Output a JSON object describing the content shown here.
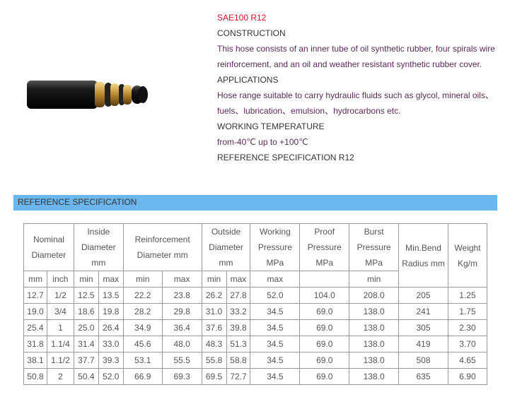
{
  "product": {
    "title": "SAE100 R12",
    "construction_heading": "CONSTRUCTION",
    "construction_text": "This hose consists of an inner tube of oil synthetic rubber, four spirals wire reinforcement, and an oil and weather resistant synthetic rubber cover.",
    "applications_heading": "APPLICATIONS",
    "applications_text": "Hose range suitable to carry hydraulic fluids such as glycol, mineral oils、fuels、lubrication、emulsion、hydrocarbons etc.",
    "temperature_heading": "WORKING TEMPERATURE",
    "temperature_text": "from-40℃ up to +100℃",
    "reference_heading": "REFERENCE SPECIFICATION R12"
  },
  "section_band": "REFERENCE SPECIFICATION",
  "table": {
    "headers": {
      "nominal": "Nominal Diameter",
      "inside": "Inside Diameter mm",
      "reinf": "Reinforcement Diameter mm",
      "outside": "Outside Diameter mm",
      "working": "Working Pressure MPa",
      "proof": "Proof Pressure MPa",
      "burst": "Burst Pressure MPa",
      "bend": "Min.Bend Radius mm",
      "weight": "Weight Kg/m"
    },
    "sub": {
      "mm": "mm",
      "inch": "inch",
      "min": "min",
      "max": "max"
    },
    "rows": [
      [
        "12.7",
        "1/2",
        "12.5",
        "13.5",
        "22.2",
        "23.8",
        "26.2",
        "27.8",
        "52.0",
        "104.0",
        "208.0",
        "205",
        "1.25"
      ],
      [
        "19.0",
        "3/4",
        "18.6",
        "19.8",
        "28.2",
        "29.8",
        "31.0",
        "33.2",
        "34.5",
        "69.0",
        "138.0",
        "241",
        "1.75"
      ],
      [
        "25.4",
        "1",
        "25.0",
        "26.4",
        "34.9",
        "36.4",
        "37.6",
        "39.8",
        "34.5",
        "69.0",
        "138.0",
        "305",
        "2.30"
      ],
      [
        "31.8",
        "1.1/4",
        "31.4",
        "33.0",
        "45.6",
        "48.0",
        "48.3",
        "51.3",
        "34.5",
        "69.0",
        "138.0",
        "419",
        "3.70"
      ],
      [
        "38.1",
        "1.1/2",
        "37.7",
        "39.3",
        "53.1",
        "55.5",
        "55.8",
        "58.8",
        "34.5",
        "69.0",
        "138.0",
        "508",
        "4.65"
      ],
      [
        "50.8",
        "2",
        "50.4",
        "52.0",
        "66.9",
        "69.3",
        "69.5",
        "72.7",
        "34.5",
        "69.0",
        "138.0",
        "635",
        "6.90"
      ]
    ]
  }
}
